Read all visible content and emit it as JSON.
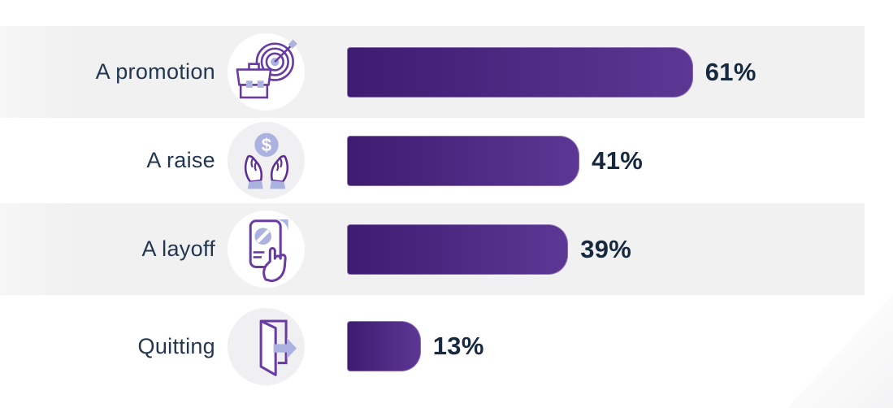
{
  "chart_data": {
    "type": "bar",
    "orientation": "horizontal",
    "title": "",
    "categories": [
      "A promotion",
      "A raise",
      "A layoff",
      "Quitting"
    ],
    "values": [
      61,
      41,
      39,
      13
    ],
    "value_labels": [
      "61%",
      "41%",
      "39%",
      "13%"
    ],
    "xlim": [
      0,
      100
    ],
    "grid": false,
    "legend": false,
    "value_label_position": "end-of-bar",
    "icons": [
      "briefcase-target",
      "hands-dollar-coin",
      "pink-slip-in-hand",
      "open-door-exit-arrow"
    ]
  },
  "rows": [
    {
      "label": "A promotion",
      "value": 61,
      "value_label": "61%"
    },
    {
      "label": "A raise",
      "value": 41,
      "value_label": "41%"
    },
    {
      "label": "A layoff",
      "value": 39,
      "value_label": "39%"
    },
    {
      "label": "Quitting",
      "value": 13,
      "value_label": "13%"
    }
  ],
  "colors": {
    "bar_gradient_start": "#3E1C71",
    "bar_gradient_end": "#5C3794",
    "label_text": "#233750",
    "value_text": "#16293F",
    "stripe_background": "#F1F1F2",
    "icon_outline": "#683BA3",
    "icon_accent": "#ACB2DF",
    "background": "#FFFFFF"
  }
}
